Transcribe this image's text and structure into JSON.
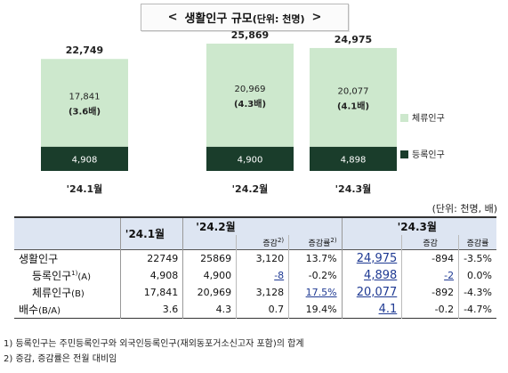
{
  "title": {
    "left_chevron": "<",
    "main": "생활인구 규모",
    "unit": "(단위: 천명)",
    "right_chevron": ">"
  },
  "chart_data": {
    "type": "bar",
    "stacked": true,
    "categories": [
      "'24.1월",
      "'24.2월",
      "'24.3월"
    ],
    "series": [
      {
        "name": "등록인구",
        "values": [
          4908,
          4900,
          4898
        ],
        "color": "#1a3d2b"
      },
      {
        "name": "체류인구",
        "values": [
          17841,
          20969,
          20077
        ],
        "color": "#cde8cd"
      }
    ],
    "totals": [
      "22,749",
      "25,869",
      "24,975"
    ],
    "stay_labels": [
      "17,841",
      "20,969",
      "20,077"
    ],
    "ratio_labels": [
      "(3.6배)",
      "(4.3배)",
      "(4.1배)"
    ],
    "registered_labels": [
      "4,908",
      "4,900",
      "4,898"
    ],
    "legend_position": "right"
  },
  "unit_note": "(단위: 천명, 배)",
  "table": {
    "headers": {
      "m1": "'24.1월",
      "m2": "'24.2월",
      "m3": "'24.3월",
      "change": "증감",
      "change_sup": "2)",
      "rate": "증감률",
      "rate_sup": "2)",
      "change_plain": "증감",
      "rate_plain": "증감률"
    },
    "rows": [
      {
        "label": "생활인구",
        "sup": "",
        "suffix": "",
        "c": [
          "22749",
          "25869",
          "3,120",
          "13.7%",
          "24,975",
          "-894",
          "-3.5%"
        ]
      },
      {
        "label": "등록인구",
        "sup": "1)",
        "suffix": "(A)",
        "c": [
          "4,908",
          "4,900",
          "-8",
          "-0.2%",
          "4,898",
          "-2",
          "0.0%"
        ]
      },
      {
        "label": "체류인구",
        "sup": "",
        "suffix": "(B)",
        "c": [
          "17,841",
          "20,969",
          "3,128",
          "17.5%",
          "20,077",
          "-892",
          "-4.3%"
        ]
      },
      {
        "label": "배수",
        "sup": "",
        "suffix": "(B/A)",
        "c": [
          "3.6",
          "4.3",
          "0.7",
          "19.4%",
          "4.1",
          "-0.2",
          "-4.7%"
        ]
      }
    ]
  },
  "footnotes": [
    "1) 등록인구는 주민등록인구와 외국인등록인구(재외동포거소신고자 포함)의 합계",
    "2) 증감, 증감률은 전월 대비임"
  ]
}
